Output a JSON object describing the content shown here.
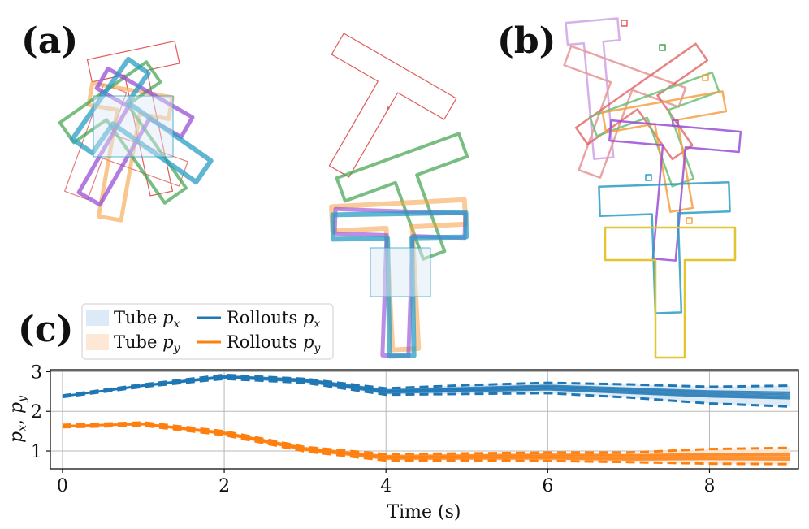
{
  "panels": {
    "a": "(a)",
    "b": "(b)",
    "c": "(c)"
  },
  "colors": {
    "red": "#e05a5a",
    "blue": "#2a9ec4",
    "green": "#3fa34d",
    "purple": "#9a4fd6",
    "orange": "#f5a043",
    "yellow": "#e2c630",
    "px": "#1f77b4",
    "py": "#ff7f0e",
    "tube_px": "#dce9f6",
    "tube_py": "#fde8d6"
  },
  "legend": {
    "tube_px": "Tube",
    "tube_py": "Tube",
    "rollouts_px": "Rollouts",
    "rollouts_py": "Rollouts",
    "sym_px": "p",
    "sub_x": "x",
    "sym_py": "p",
    "sub_y": "y"
  },
  "chart_data": {
    "type": "line",
    "xlabel": "Time (s)",
    "ylabel": "p_x, p_y",
    "ylabel_main": "p",
    "ylabel_sub_x": "x",
    "ylabel_sep": ", ",
    "ylabel_sub_y": "y",
    "xlim": [
      -0.15,
      9.1
    ],
    "ylim": [
      0.55,
      3.05
    ],
    "xticks": [
      0,
      2,
      4,
      6,
      8
    ],
    "yticks": [
      1,
      2,
      3
    ],
    "grid": true,
    "x": [
      0,
      1,
      2,
      3,
      4,
      5,
      6,
      7,
      8,
      9
    ],
    "series": [
      {
        "name": "Rollouts p_x",
        "values": [
          2.38,
          2.65,
          2.87,
          2.78,
          2.5,
          2.55,
          2.6,
          2.52,
          2.44,
          2.4
        ],
        "tube_upper": [
          2.4,
          2.68,
          2.92,
          2.82,
          2.58,
          2.66,
          2.72,
          2.68,
          2.62,
          2.65
        ],
        "tube_lower": [
          2.36,
          2.62,
          2.82,
          2.72,
          2.42,
          2.44,
          2.46,
          2.35,
          2.2,
          2.12
        ]
      },
      {
        "name": "Rollouts p_y",
        "values": [
          1.63,
          1.68,
          1.45,
          1.05,
          0.84,
          0.85,
          0.86,
          0.84,
          0.86,
          0.86
        ],
        "tube_upper": [
          1.66,
          1.72,
          1.5,
          1.1,
          0.92,
          0.94,
          0.96,
          0.96,
          1.05,
          1.08
        ],
        "tube_lower": [
          1.6,
          1.64,
          1.4,
          0.99,
          0.76,
          0.76,
          0.75,
          0.72,
          0.68,
          0.67
        ]
      }
    ]
  }
}
